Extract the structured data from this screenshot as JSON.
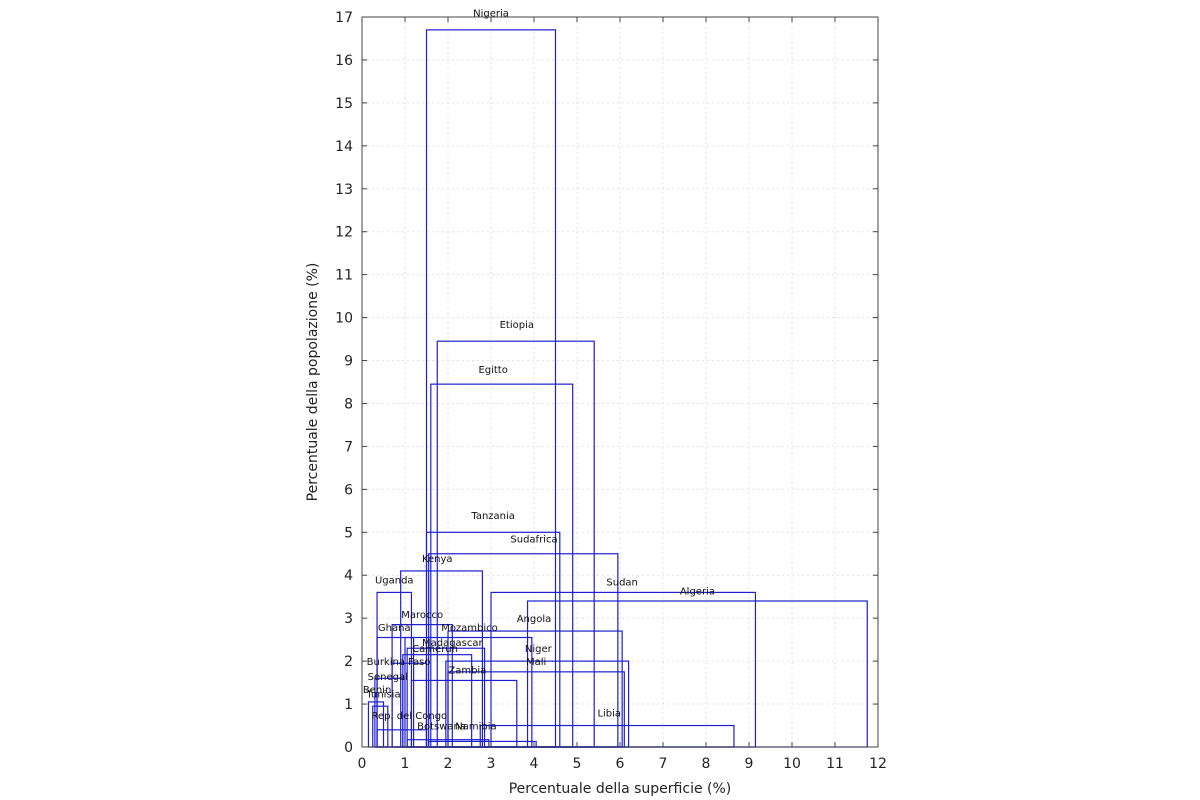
{
  "chart_data": {
    "type": "marimekko",
    "xlabel": "Percentuale della superficie (%)",
    "ylabel": "Percentuale della popolazione (%)",
    "xlim": [
      0,
      12
    ],
    "ylim": [
      0,
      17
    ],
    "x_ticks": [
      0,
      1,
      2,
      3,
      4,
      5,
      6,
      7,
      8,
      9,
      10,
      11,
      12
    ],
    "y_ticks": [
      0,
      1,
      2,
      3,
      4,
      5,
      6,
      7,
      8,
      9,
      10,
      11,
      12,
      13,
      14,
      15,
      16,
      17
    ],
    "grid": true,
    "box_color": "#1f1fd0",
    "countries": [
      {
        "name": "Nigeria",
        "x0": 1.5,
        "x1": 4.5,
        "y": 16.7
      },
      {
        "name": "Etiopia",
        "x0": 1.75,
        "x1": 5.4,
        "y": 9.45
      },
      {
        "name": "Egitto",
        "x0": 1.6,
        "x1": 4.9,
        "y": 8.45
      },
      {
        "name": "Tanzania",
        "x0": 1.5,
        "x1": 4.6,
        "y": 5.0
      },
      {
        "name": "Sudafrica",
        "x0": 1.55,
        "x1": 5.95,
        "y": 4.5
      },
      {
        "name": "Kenya",
        "x0": 0.9,
        "x1": 2.8,
        "y": 4.1
      },
      {
        "name": "Uganda",
        "x0": 0.35,
        "x1": 1.15,
        "y": 3.6
      },
      {
        "name": "Sudan",
        "x0": 3.0,
        "x1": 9.15,
        "y": 3.6
      },
      {
        "name": "Algeria",
        "x0": 3.85,
        "x1": 11.75,
        "y": 3.4
      },
      {
        "name": "Marocco",
        "x0": 0.7,
        "x1": 2.1,
        "y": 2.85
      },
      {
        "name": "Angola",
        "x0": 2.0,
        "x1": 6.05,
        "y": 2.7
      },
      {
        "name": "Ghana",
        "x0": 0.35,
        "x1": 1.2,
        "y": 2.55
      },
      {
        "name": "Mozambico",
        "x0": 1.0,
        "x1": 3.95,
        "y": 2.55
      },
      {
        "name": "Madagascar",
        "x0": 1.05,
        "x1": 2.85,
        "y": 2.3
      },
      {
        "name": "Camerun",
        "x0": 0.95,
        "x1": 2.55,
        "y": 2.15
      },
      {
        "name": "Niger",
        "x0": 1.95,
        "x1": 6.2,
        "y": 2.0
      },
      {
        "name": "Burkina Faso",
        "x0": 0.7,
        "x1": 1.5,
        "y": 1.95
      },
      {
        "name": "Mali",
        "x0": 2.0,
        "x1": 6.1,
        "y": 1.75
      },
      {
        "name": "Zambia",
        "x0": 1.15,
        "x1": 3.6,
        "y": 1.55
      },
      {
        "name": "Senegal",
        "x0": 0.3,
        "x1": 0.95,
        "y": 1.6
      },
      {
        "name": "Benin",
        "x0": 0.15,
        "x1": 0.5,
        "y": 1.05
      },
      {
        "name": "Tunisia",
        "x0": 0.25,
        "x1": 0.6,
        "y": 0.95
      },
      {
        "name": "Libia",
        "x0": 2.75,
        "x1": 8.65,
        "y": 0.5
      },
      {
        "name": "Rep. del Congo",
        "x0": 0.35,
        "x1": 1.5,
        "y": 0.4
      },
      {
        "name": "Botswana",
        "x0": 1.05,
        "x1": 2.95,
        "y": 0.17
      },
      {
        "name": "Namibia",
        "x0": 1.55,
        "x1": 4.05,
        "y": 0.13
      }
    ]
  },
  "label_positions": {
    "Nigeria": [
      3.0,
      17.1
    ],
    "Etiopia": [
      3.6,
      9.85
    ],
    "Egitto": [
      3.05,
      8.8
    ],
    "Tanzania": [
      3.05,
      5.4
    ],
    "Sudafrica": [
      4.0,
      4.85
    ],
    "Kenya": [
      1.75,
      4.4
    ],
    "Uganda": [
      0.75,
      3.9
    ],
    "Sudan": [
      6.05,
      3.85
    ],
    "Algeria": [
      7.8,
      3.65
    ],
    "Marocco": [
      1.4,
      3.1
    ],
    "Angola": [
      4.0,
      3.0
    ],
    "Ghana": [
      0.75,
      2.8
    ],
    "Mozambico": [
      2.5,
      2.8
    ],
    "Madagascar": [
      2.1,
      2.45
    ],
    "Camerun": [
      1.7,
      2.3
    ],
    "Niger": [
      4.1,
      2.3
    ],
    "Burkina Faso": [
      0.85,
      2.0
    ],
    "Mali": [
      4.05,
      2.0
    ],
    "Zambia": [
      2.45,
      1.8
    ],
    "Senegal": [
      0.6,
      1.65
    ],
    "Benin": [
      0.35,
      1.35
    ],
    "Tunisia": [
      0.5,
      1.25
    ],
    "Libia": [
      5.75,
      0.8
    ],
    "Rep. del Congo": [
      1.1,
      0.75
    ],
    "Botswana": [
      1.85,
      0.5
    ],
    "Namibia": [
      2.65,
      0.5
    ]
  }
}
